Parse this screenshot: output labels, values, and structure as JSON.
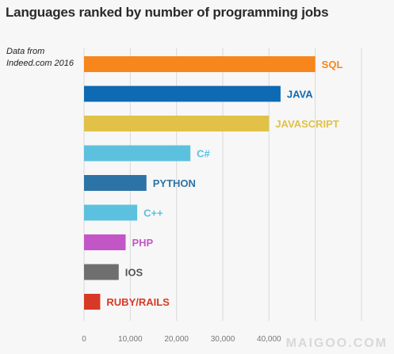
{
  "chart_data": {
    "type": "bar",
    "orientation": "horizontal",
    "title": "Languages ranked by number of programming jobs",
    "source_note": "Data from Indeed.com 2016",
    "categories": [
      "SQL",
      "JAVA",
      "JAVASCRIPT",
      "C#",
      "PYTHON",
      "C++",
      "PHP",
      "IOS",
      "RUBY/RAILS"
    ],
    "values": [
      50000,
      42500,
      40000,
      23000,
      13500,
      11500,
      9000,
      7500,
      3500
    ],
    "colors": [
      "#f7861c",
      "#0e6ab3",
      "#e1c148",
      "#5bc1de",
      "#2c74a5",
      "#5bc1de",
      "#c356c6",
      "#6f6f6f",
      "#d63a26"
    ],
    "label_colors": [
      "#f7861c",
      "#0e6ab3",
      "#e1c148",
      "#5bc1de",
      "#2c74a5",
      "#5bc1de",
      "#c356c6",
      "#555555",
      "#d63a26"
    ],
    "xlim": [
      0,
      60000
    ],
    "xticks": [
      0,
      10000,
      20000,
      30000,
      40000,
      50000,
      60000
    ],
    "xtick_labels": [
      "0",
      "10,000",
      "20,000",
      "30,000",
      "40,000",
      "",
      ""
    ],
    "grid": true,
    "legend": "none"
  },
  "watermark": "MAIGOO.COM"
}
